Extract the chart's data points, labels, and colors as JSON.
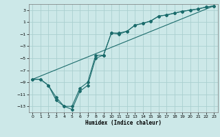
{
  "xlabel": "Humidex (Indice chaleur)",
  "bg_color": "#cce8e8",
  "grid_color": "#aacfcf",
  "line_color": "#1a6b6b",
  "xlim": [
    -0.5,
    23.5
  ],
  "ylim": [
    -14.0,
    4.0
  ],
  "xticks": [
    0,
    1,
    2,
    3,
    4,
    5,
    6,
    7,
    8,
    9,
    10,
    11,
    12,
    13,
    14,
    15,
    16,
    17,
    18,
    19,
    20,
    21,
    22,
    23
  ],
  "yticks": [
    3,
    1,
    -1,
    -3,
    -5,
    -7,
    -9,
    -11,
    -13
  ],
  "line1_x": [
    0,
    1,
    2,
    3,
    4,
    5,
    6,
    7,
    8,
    9,
    10,
    11,
    12,
    13,
    14,
    15,
    16,
    17,
    18,
    19,
    20,
    21,
    22,
    23
  ],
  "line1_y": [
    -8.5,
    -8.5,
    -9.5,
    -12,
    -13,
    -13,
    -10,
    -9,
    -4.5,
    -4.5,
    -0.8,
    -0.8,
    -0.5,
    0.5,
    0.8,
    1.2,
    2.0,
    2.2,
    2.5,
    2.8,
    3.0,
    3.2,
    3.5,
    3.7
  ],
  "line2_x": [
    0,
    1,
    2,
    3,
    4,
    5,
    6,
    7,
    8,
    9,
    10,
    11,
    12,
    13,
    14,
    15,
    16,
    17,
    18,
    19,
    20,
    21,
    22,
    23
  ],
  "line2_y": [
    -8.5,
    -8.5,
    -9.5,
    -11.5,
    -13,
    -13.5,
    -10.5,
    -9.5,
    -5,
    -4.5,
    -0.8,
    -1.0,
    -0.5,
    0.5,
    0.8,
    1.2,
    2.0,
    2.2,
    2.5,
    2.8,
    3.0,
    3.2,
    3.5,
    3.7
  ],
  "line3_x": [
    0,
    23
  ],
  "line3_y": [
    -8.5,
    3.7
  ]
}
